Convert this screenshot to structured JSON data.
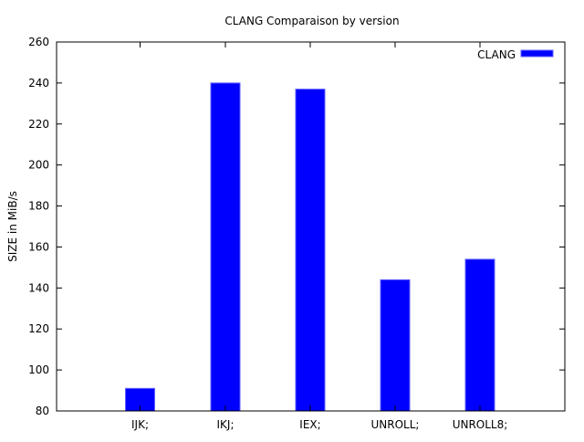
{
  "chart_data": {
    "type": "bar",
    "title": "CLANG Comparaison by version",
    "xlabel": "",
    "ylabel": "SIZE in MiB/s",
    "categories": [
      "IJK;",
      "IKJ;",
      "IEX;",
      "UNROLL;",
      "UNROLL8;"
    ],
    "series": [
      {
        "name": "CLANG",
        "color": "#0000ff",
        "values": [
          91,
          240,
          237,
          144,
          154
        ]
      }
    ],
    "ylim": [
      80,
      260
    ],
    "yticks": [
      80,
      100,
      120,
      140,
      160,
      180,
      200,
      220,
      240,
      260
    ],
    "grid": false,
    "legend": "top-right"
  }
}
